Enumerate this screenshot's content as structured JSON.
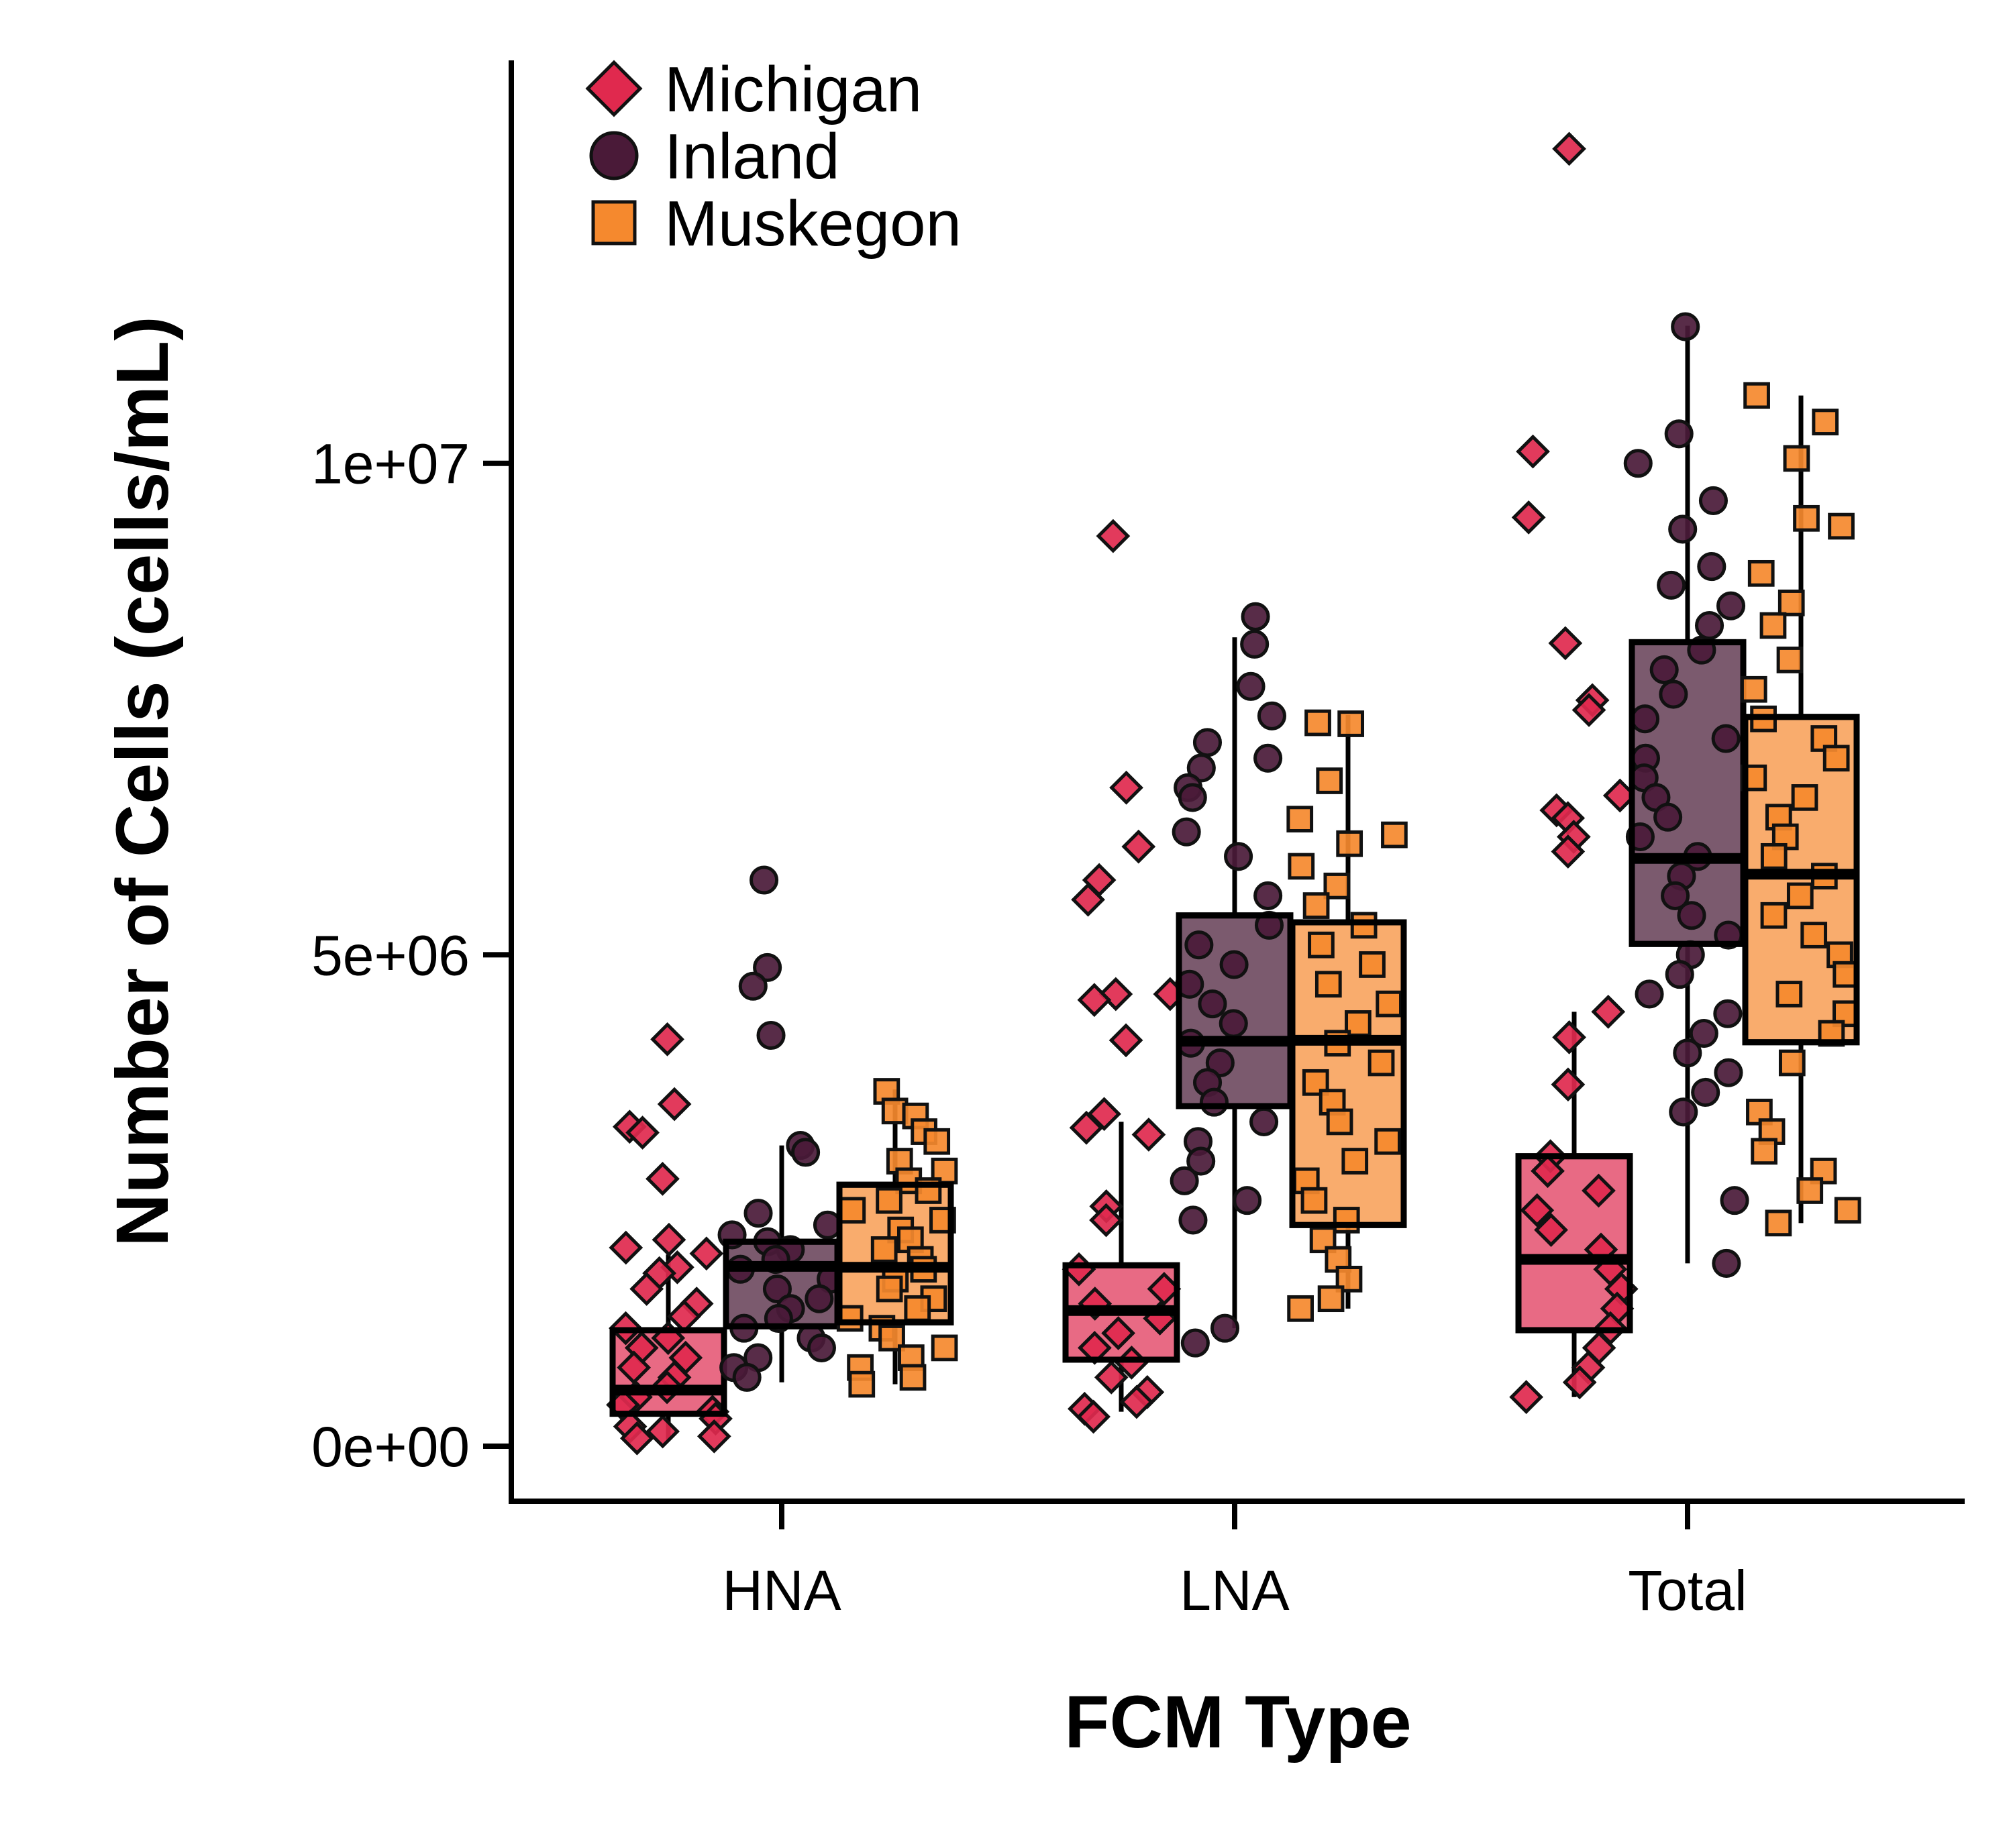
{
  "chart_data": {
    "type": "boxplot",
    "xlabel": "FCM Type",
    "ylabel": "Number of Cells (cells/mL)",
    "ylim": [
      -560000,
      14100000
    ],
    "yticks": [
      {
        "value": 0,
        "label": "0e+00"
      },
      {
        "value": 5000000,
        "label": "5e+06"
      },
      {
        "value": 10000000,
        "label": "1e+07"
      }
    ],
    "categories": [
      "HNA",
      "LNA",
      "Total"
    ],
    "legend": {
      "position": "top-left"
    },
    "series": [
      {
        "name": "Michigan",
        "marker": "diamond",
        "color": "#E0294E",
        "box_fill": "#E86A84",
        "boxes": [
          {
            "category": "HNA",
            "q1": 330000,
            "median": 570000,
            "q3": 1180000,
            "whisker_low": 70000,
            "whisker_high": 1950000
          },
          {
            "category": "LNA",
            "q1": 880000,
            "median": 1380000,
            "q3": 1840000,
            "whisker_low": 350000,
            "whisker_high": 3300000
          },
          {
            "category": "Total",
            "q1": 1180000,
            "median": 1900000,
            "q3": 2950000,
            "whisker_low": 500000,
            "whisker_high": 4420000
          }
        ],
        "points": {
          "HNA": [
            4140000,
            3480000,
            3250000,
            3190000,
            2720000,
            2100000,
            2020000,
            1960000,
            1820000,
            1760000,
            1600000,
            1450000,
            1320000,
            1200000,
            1100000,
            1000000,
            900000,
            800000,
            700000,
            600000,
            500000,
            420000,
            350000,
            280000,
            200000,
            150000,
            100000,
            80000
          ],
          "LNA": [
            9260000,
            6700000,
            6100000,
            5760000,
            5560000,
            4600000,
            4600000,
            4540000,
            4130000,
            3380000,
            3240000,
            3170000,
            2440000,
            2300000,
            1800000,
            1600000,
            1450000,
            1300000,
            1150000,
            1000000,
            850000,
            700000,
            550000,
            450000,
            380000,
            300000
          ],
          "Total": [
            13200000,
            10120000,
            9450000,
            8170000,
            7590000,
            7490000,
            6620000,
            6470000,
            6390000,
            6200000,
            6050000,
            4420000,
            4160000,
            3680000,
            2950000,
            2800000,
            2600000,
            2400000,
            2200000,
            2000000,
            1800000,
            1600000,
            1400000,
            1200000,
            1000000,
            800000,
            650000,
            500000
          ]
        }
      },
      {
        "name": "Inland",
        "marker": "circle",
        "color": "#4A1A38",
        "box_fill": "#7B5A6E",
        "boxes": [
          {
            "category": "HNA",
            "q1": 1220000,
            "median": 1830000,
            "q3": 2080000,
            "whisker_low": 650000,
            "whisker_high": 3060000
          },
          {
            "category": "LNA",
            "q1": 3460000,
            "median": 4120000,
            "q3": 5400000,
            "whisker_low": 1200000,
            "whisker_high": 8230000
          },
          {
            "category": "Total",
            "q1": 5110000,
            "median": 5980000,
            "q3": 8180000,
            "whisker_low": 1860000,
            "whisker_high": 11400000
          }
        ],
        "points": {
          "HNA": [
            5760000,
            4870000,
            4680000,
            4180000,
            3060000,
            2990000,
            2370000,
            2250000,
            2150000,
            2080000,
            2000000,
            1900000,
            1800000,
            1700000,
            1600000,
            1500000,
            1400000,
            1300000,
            1200000,
            1100000,
            1000000,
            900000,
            800000,
            700000
          ],
          "LNA": [
            8440000,
            8160000,
            7730000,
            7430000,
            7160000,
            7000000,
            6900000,
            6700000,
            6600000,
            6250000,
            6000000,
            5600000,
            5300000,
            5100000,
            4900000,
            4700000,
            4500000,
            4300000,
            4100000,
            3900000,
            3700000,
            3500000,
            3300000,
            3100000,
            2900000,
            2700000,
            2500000,
            2300000,
            1200000,
            1050000
          ],
          "Total": [
            11390000,
            10300000,
            10000000,
            9620000,
            9330000,
            8950000,
            8760000,
            8550000,
            8350000,
            8100000,
            7900000,
            7650000,
            7400000,
            7200000,
            7000000,
            6800000,
            6600000,
            6400000,
            6200000,
            6000000,
            5800000,
            5600000,
            5400000,
            5200000,
            5000000,
            4800000,
            4600000,
            4400000,
            4200000,
            4000000,
            3800000,
            3600000,
            3400000,
            2500000,
            1860000
          ]
        }
      },
      {
        "name": "Muskegon",
        "marker": "square",
        "color": "#F5892E",
        "box_fill": "#F9AC6D",
        "boxes": [
          {
            "category": "HNA",
            "q1": 1260000,
            "median": 1820000,
            "q3": 2660000,
            "whisker_low": 630000,
            "whisker_high": 3630000
          },
          {
            "category": "LNA",
            "q1": 2250000,
            "median": 4130000,
            "q3": 5330000,
            "whisker_low": 1400000,
            "whisker_high": 7440000
          },
          {
            "category": "Total",
            "q1": 4110000,
            "median": 5820000,
            "q3": 7420000,
            "whisker_low": 2270000,
            "whisker_high": 10690000
          }
        ],
        "points": {
          "HNA": [
            3610000,
            3410000,
            3360000,
            3200000,
            3100000,
            2900000,
            2800000,
            2700000,
            2600000,
            2500000,
            2400000,
            2300000,
            2200000,
            2100000,
            2000000,
            1900000,
            1800000,
            1700000,
            1600000,
            1500000,
            1400000,
            1300000,
            1200000,
            1100000,
            1000000,
            900000,
            800000,
            700000,
            630000
          ],
          "LNA": [
            7360000,
            7350000,
            6770000,
            6380000,
            6220000,
            6130000,
            5900000,
            5700000,
            5500000,
            5300000,
            5100000,
            4900000,
            4700000,
            4500000,
            4300000,
            4100000,
            3900000,
            3700000,
            3500000,
            3300000,
            3100000,
            2900000,
            2700000,
            2500000,
            2300000,
            2100000,
            1900000,
            1700000,
            1500000,
            1400000
          ],
          "Total": [
            10690000,
            10420000,
            10050000,
            9440000,
            9360000,
            8880000,
            8580000,
            8350000,
            8000000,
            7700000,
            7400000,
            7200000,
            7000000,
            6800000,
            6600000,
            6400000,
            6200000,
            6000000,
            5800000,
            5600000,
            5400000,
            5200000,
            5000000,
            4800000,
            4600000,
            4400000,
            4200000,
            3900000,
            3400000,
            3200000,
            3000000,
            2800000,
            2600000,
            2400000,
            2270000
          ]
        }
      }
    ]
  }
}
